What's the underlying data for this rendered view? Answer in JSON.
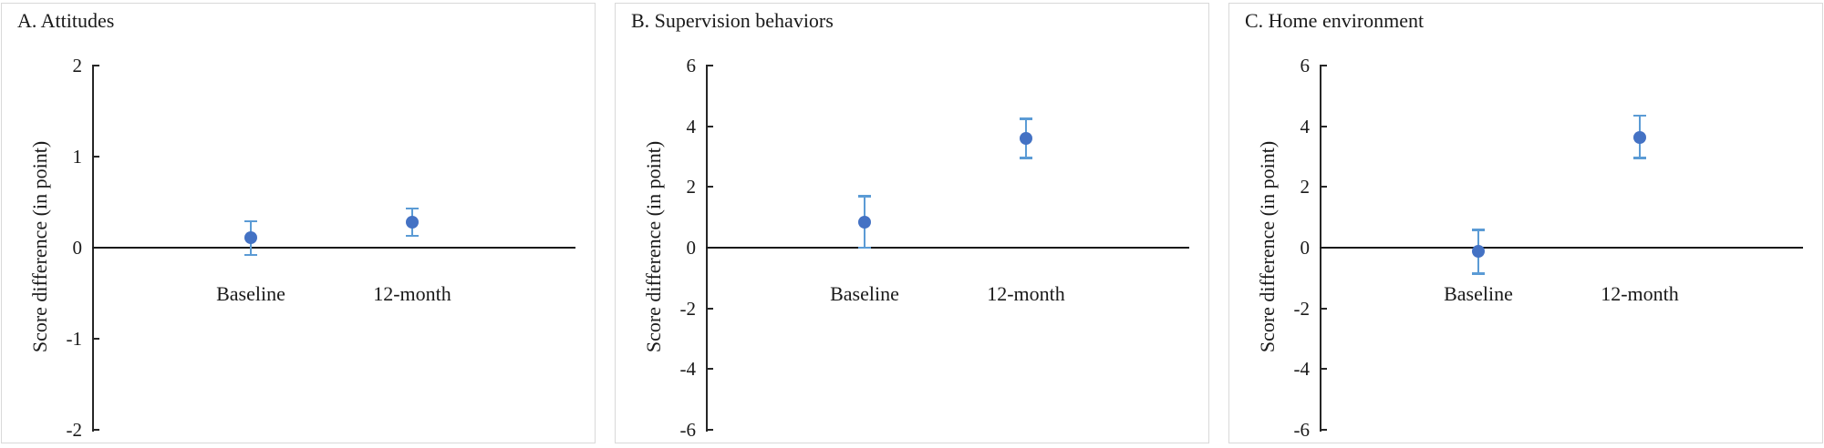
{
  "figure": {
    "background": "#ffffff",
    "panel_border_color": "#d9d9d9"
  },
  "colors": {
    "point": "#4472C4",
    "error_bar": "#5B9BD5",
    "axis": "#262626",
    "zero_line": "#1a1a1a",
    "text": "#1a1a1a"
  },
  "chart_data": [
    {
      "type": "scatter",
      "title": "A. Attitudes",
      "ylabel": "Score difference (in point)",
      "xlabel": "",
      "ylim": [
        -2,
        2
      ],
      "yticks": [
        "2",
        "1",
        "0",
        "-1",
        "-2"
      ],
      "ytick_values": [
        2,
        1,
        0,
        -1,
        -2
      ],
      "categories": [
        "Baseline",
        "12-month"
      ],
      "grid": false,
      "legend": false,
      "error_bars": true,
      "series": [
        {
          "values": [
            0.11,
            0.28
          ],
          "ci_low": [
            -0.08,
            0.13
          ],
          "ci_high": [
            0.29,
            0.43
          ]
        }
      ]
    },
    {
      "type": "scatter",
      "title": "B. Supervision behaviors",
      "ylabel": "Score difference (in point)",
      "xlabel": "",
      "ylim": [
        -6,
        6
      ],
      "yticks": [
        "6",
        "4",
        "2",
        "0",
        "-2",
        "-4",
        "-6"
      ],
      "ytick_values": [
        6,
        4,
        2,
        0,
        -2,
        -4,
        -6
      ],
      "categories": [
        "Baseline",
        "12-month"
      ],
      "grid": false,
      "legend": false,
      "error_bars": true,
      "series": [
        {
          "values": [
            0.85,
            3.6
          ],
          "ci_low": [
            0.0,
            2.95
          ],
          "ci_high": [
            1.7,
            4.25
          ]
        }
      ]
    },
    {
      "type": "scatter",
      "title": "C. Home environment",
      "ylabel": "Score difference (in point)",
      "xlabel": "",
      "ylim": [
        -6,
        6
      ],
      "yticks": [
        "6",
        "4",
        "2",
        "0",
        "-2",
        "-4",
        "-6"
      ],
      "ytick_values": [
        6,
        4,
        2,
        0,
        -2,
        -4,
        -6
      ],
      "categories": [
        "Baseline",
        "12-month"
      ],
      "grid": false,
      "legend": false,
      "error_bars": true,
      "series": [
        {
          "values": [
            -0.12,
            3.64
          ],
          "ci_low": [
            -0.85,
            2.95
          ],
          "ci_high": [
            0.58,
            4.35
          ]
        }
      ]
    }
  ]
}
